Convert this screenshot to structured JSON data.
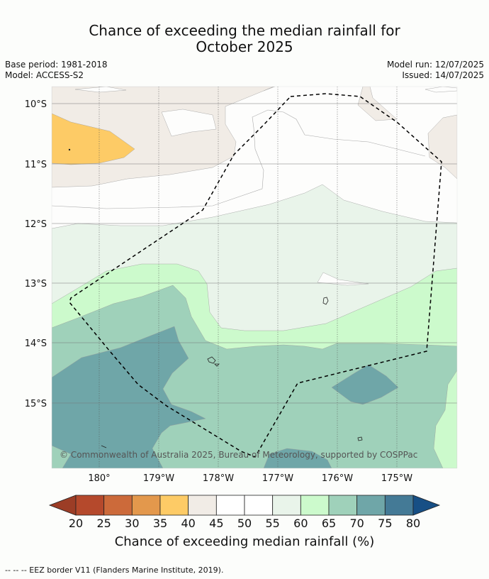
{
  "title_line1": "Chance of exceeding the median rainfall for",
  "title_line2": "October 2025",
  "meta": {
    "base_period": "Base period: 1981-2018",
    "model": "Model: ACCESS-S2",
    "model_run": "Model run: 12/07/2025",
    "issued": "Issued: 14/07/2025"
  },
  "lat_labels": [
    "10°S",
    "11°S",
    "12°S",
    "13°S",
    "14°S",
    "15°S"
  ],
  "lon_labels": [
    "180°",
    "179°W",
    "178°W",
    "177°W",
    "176°W",
    "175°W"
  ],
  "copyright": "© Commonwealth of Australia 2025, Bureau of Meteorology, supported by COSPPac",
  "colorbar": {
    "ticks": [
      "20",
      "25",
      "30",
      "35",
      "40",
      "45",
      "50",
      "55",
      "60",
      "65",
      "70",
      "75",
      "80"
    ],
    "colors": [
      "#b5492c",
      "#cc6a3a",
      "#e3984c",
      "#fdcb66",
      "#f1ece6",
      "#ffffff",
      "#ffffff",
      "#e9f4ea",
      "#ccfacc",
      "#9fd1ba",
      "#6fa6a8",
      "#447a96"
    ],
    "under_color": "#9c3d26",
    "over_color": "#174f85",
    "label": "Chance of exceeding median rainfall (%)"
  },
  "footer": "--  --  -- EEZ border V11 (Flanders Marine Institute, 2019)."
}
